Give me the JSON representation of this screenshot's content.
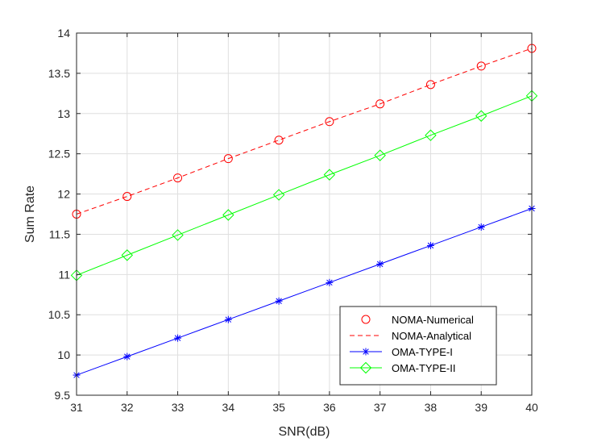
{
  "chart_data": {
    "type": "line",
    "title": "",
    "xlabel": "SNR(dB)",
    "ylabel": "Sum Rate",
    "xlim": [
      31,
      40
    ],
    "ylim": [
      9.5,
      14
    ],
    "x_ticks": [
      "31",
      "32",
      "33",
      "34",
      "35",
      "36",
      "37",
      "38",
      "39",
      "40"
    ],
    "y_ticks": [
      "9.5",
      "10",
      "10.5",
      "11",
      "11.5",
      "12",
      "12.5",
      "13",
      "13.5",
      "14"
    ],
    "grid": true,
    "legend_position": "bottom-right",
    "x": [
      31,
      32,
      33,
      34,
      35,
      36,
      37,
      38,
      39,
      40
    ],
    "series": [
      {
        "name": "NOMA-Numerical",
        "values": [
          11.75,
          11.97,
          12.2,
          12.44,
          12.67,
          12.9,
          13.12,
          13.36,
          13.59,
          13.81
        ],
        "color": "#ff0000",
        "line": "none",
        "marker": "circle"
      },
      {
        "name": "NOMA-Analytical",
        "values": [
          11.75,
          11.97,
          12.2,
          12.44,
          12.67,
          12.9,
          13.12,
          13.36,
          13.59,
          13.81
        ],
        "color": "#ff0000",
        "line": "dashed",
        "marker": "none"
      },
      {
        "name": "OMA-TYPE-I",
        "values": [
          9.75,
          9.98,
          10.21,
          10.44,
          10.67,
          10.9,
          11.13,
          11.36,
          11.59,
          11.82
        ],
        "color": "#0000ff",
        "line": "solid",
        "marker": "asterisk"
      },
      {
        "name": "OMA-TYPE-II",
        "values": [
          10.99,
          11.24,
          11.49,
          11.74,
          11.99,
          12.24,
          12.48,
          12.73,
          12.97,
          13.22
        ],
        "color": "#00ff00",
        "line": "solid",
        "marker": "diamond"
      }
    ]
  }
}
